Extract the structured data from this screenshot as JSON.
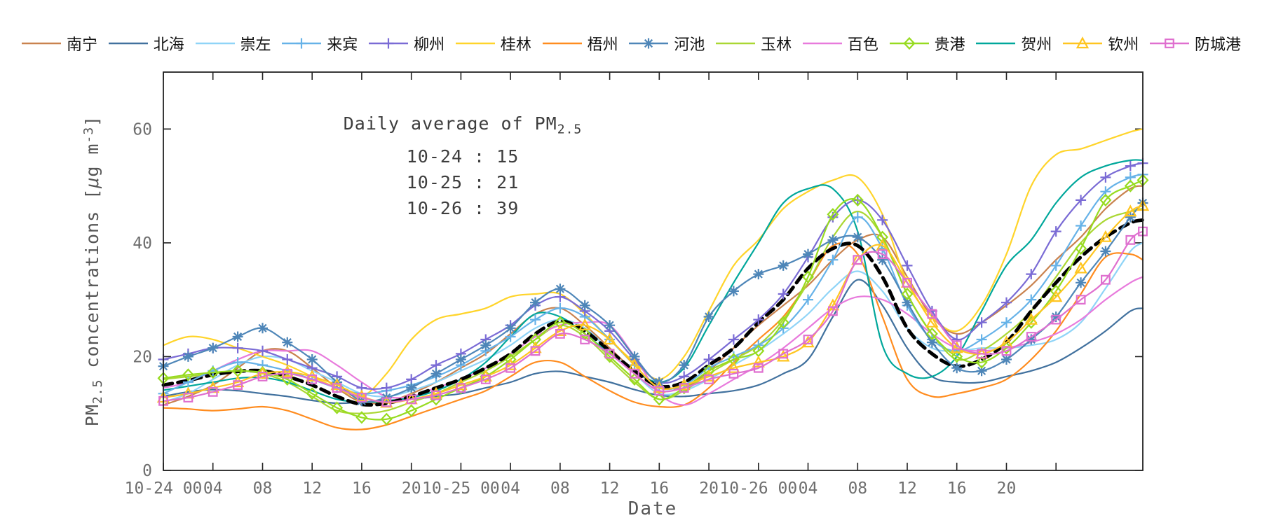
{
  "figure": {
    "background": "#ffffff",
    "frame_color": "#222222",
    "tick_label_color": "#6e6e6e"
  },
  "chart_data": {
    "type": "line",
    "title": "",
    "xlabel": "Date",
    "ylabel_text": "PM2.5 concentrations [ug m-3]",
    "ylabel_parts": {
      "p1": "PM",
      "sub": "2.5",
      "p2": " concentrations [",
      "mu": "μ",
      "p3": "g m",
      "sup": "-3",
      "p4": "]"
    },
    "annotation": {
      "title_main": "Daily average of PM",
      "title_sub": "2.5",
      "lines": [
        "10-24 : 15",
        "10-25 : 21",
        "10-26 : 39"
      ]
    },
    "x_unit": "hours from 10-24 00:00, step 2 h (last point 79 h)",
    "x_step_hours": 2,
    "x_last_hour": 79,
    "xlim": [
      0,
      79
    ],
    "ylim": [
      0,
      70
    ],
    "yticks": [
      0,
      20,
      40,
      60
    ],
    "xtick_hours": [
      0,
      4,
      8,
      12,
      16,
      20,
      24,
      28,
      32,
      36,
      40,
      44,
      48,
      52,
      56,
      60,
      64,
      68,
      72
    ],
    "xtick_labels": [
      "10-24 00",
      "04",
      "08",
      "12",
      "16",
      "20",
      "10-25 00",
      "04",
      "08",
      "12",
      "16",
      "20",
      "10-26 00",
      "04",
      "08",
      "12",
      "16",
      "20",
      ""
    ],
    "grid": false,
    "legend_position": "top",
    "series": [
      {
        "key": "nanning",
        "label": "南宁",
        "color": "#C9824E",
        "marker": "none",
        "width": 2.2,
        "in_legend": true,
        "values": [
          11.5,
          13,
          15,
          18,
          21,
          21,
          18,
          14.5,
          12,
          12,
          13.5,
          15.5,
          18,
          20.5,
          24,
          27.5,
          28.5,
          25.5,
          21.5,
          17.5,
          15,
          14.5,
          17.5,
          21.5,
          25.5,
          29,
          32.5,
          37,
          40.5,
          41,
          34,
          27,
          24,
          26,
          29,
          32.5,
          37,
          41,
          46,
          49.5,
          50
        ]
      },
      {
        "key": "beihai",
        "label": "北海",
        "color": "#41719E",
        "marker": "none",
        "width": 2.2,
        "in_legend": true,
        "values": [
          13,
          13.8,
          14.2,
          14,
          13.5,
          13,
          12.3,
          11.8,
          12,
          12.3,
          12.5,
          13,
          13.5,
          14.5,
          15.5,
          17,
          17.4,
          16.5,
          15.5,
          14.2,
          13.2,
          13,
          13.5,
          14,
          15,
          17,
          19.5,
          27,
          33.5,
          29,
          21.5,
          16.5,
          15.5,
          15.5,
          16.5,
          17.5,
          19,
          21.5,
          24.5,
          28,
          28.5
        ]
      },
      {
        "key": "chongzuo",
        "label": "崇左",
        "color": "#8FD4F7",
        "marker": "none",
        "width": 2.2,
        "in_legend": true,
        "values": [
          12,
          13.5,
          16,
          18.5,
          20,
          19.5,
          17.5,
          15.5,
          13.5,
          13,
          14,
          15.5,
          17.5,
          19.5,
          22,
          25,
          26.5,
          25,
          21,
          17,
          13.5,
          14,
          16,
          18.5,
          21,
          24,
          27.5,
          32,
          35,
          31.5,
          25,
          21.5,
          21,
          21.5,
          21.5,
          22,
          23,
          26,
          32,
          38.5,
          40
        ]
      },
      {
        "key": "laibin",
        "label": "来宾",
        "color": "#66B2E8",
        "marker": "plus",
        "width": 2.2,
        "in_legend": true,
        "values": [
          13.5,
          15.5,
          17.5,
          19,
          18.5,
          17.5,
          16,
          14.5,
          13.5,
          14,
          15,
          16.5,
          18.5,
          21,
          23.5,
          26.5,
          28.5,
          27,
          23,
          18.5,
          14.5,
          15,
          18,
          20,
          22,
          25,
          30,
          37,
          44.5,
          39,
          29,
          23,
          21,
          23,
          26,
          30,
          36,
          43,
          49,
          51.5,
          52
        ]
      },
      {
        "key": "liuzhou",
        "label": "柳州",
        "color": "#7A6BD5",
        "marker": "plus",
        "width": 2.2,
        "in_legend": true,
        "values": [
          19.5,
          20.5,
          21.5,
          21.5,
          21,
          19.5,
          18,
          16.5,
          14.5,
          14.5,
          16,
          18.5,
          20.5,
          23,
          25.5,
          29,
          30.5,
          28,
          24.5,
          19.5,
          15.5,
          16.5,
          19.5,
          23,
          26.5,
          31,
          37.5,
          44.5,
          47.5,
          44,
          36,
          28,
          23,
          26,
          29.5,
          34.5,
          42,
          47.5,
          51.5,
          53.5,
          54
        ]
      },
      {
        "key": "guilin",
        "label": "桂林",
        "color": "#FFD42A",
        "marker": "none",
        "width": 2.2,
        "in_legend": true,
        "values": [
          22,
          23.5,
          23,
          21.5,
          20,
          18.5,
          16.5,
          14.5,
          13,
          17,
          23,
          26.5,
          27.5,
          28.5,
          30.5,
          31,
          31,
          27.5,
          23,
          19,
          16,
          20,
          28,
          36,
          40.5,
          46,
          49,
          51,
          51.5,
          45,
          33,
          27,
          24.5,
          29,
          38,
          50,
          55.5,
          56.5,
          58,
          59.5,
          60
        ]
      },
      {
        "key": "wuzhou",
        "label": "梧州",
        "color": "#FF8C1F",
        "marker": "none",
        "width": 2.2,
        "in_legend": true,
        "values": [
          11,
          10.8,
          10.5,
          10.8,
          11.2,
          10.5,
          9,
          7.5,
          7.2,
          8,
          9.5,
          11,
          12.5,
          14,
          16.5,
          19,
          19,
          16.5,
          14,
          12,
          11.2,
          11.5,
          14.5,
          19,
          23,
          27,
          33,
          39.5,
          38,
          27,
          16,
          13,
          13.5,
          14.5,
          16,
          19.5,
          24.5,
          31,
          37.5,
          38,
          37
        ]
      },
      {
        "key": "hechi",
        "label": "河池",
        "color": "#4E86B8",
        "marker": "asterisk",
        "width": 2.2,
        "in_legend": true,
        "values": [
          18.3,
          20,
          21.5,
          23.5,
          25,
          22.5,
          19.5,
          15.5,
          12.2,
          12.8,
          14.5,
          17,
          19.5,
          22,
          25,
          29.5,
          31.9,
          29,
          25.5,
          20,
          15.5,
          18.5,
          27,
          31.5,
          34.5,
          36,
          38,
          40.5,
          41,
          37,
          29.5,
          22.5,
          18,
          17.5,
          19.5,
          23,
          27,
          33,
          38.5,
          44.5,
          47
        ]
      },
      {
        "key": "yulin",
        "label": "玉林",
        "color": "#AAD733",
        "marker": "none",
        "width": 2.2,
        "in_legend": true,
        "values": [
          16,
          16.5,
          17,
          17.5,
          17,
          15.5,
          13,
          10.5,
          10,
          10.5,
          12,
          13.5,
          15.5,
          17.5,
          20,
          23,
          25.5,
          23.5,
          19.5,
          15.5,
          12.5,
          14,
          17,
          19.5,
          22,
          26.5,
          33,
          41,
          45.5,
          41,
          31,
          24,
          19.5,
          21,
          24,
          28,
          34,
          40,
          44,
          45.5,
          46
        ]
      },
      {
        "key": "baise",
        "label": "百色",
        "color": "#E87ADC",
        "marker": "none",
        "width": 2.2,
        "in_legend": true,
        "values": [
          14.5,
          15.5,
          17.5,
          19.5,
          21,
          21,
          21,
          18.5,
          15.5,
          13,
          13,
          14.5,
          16,
          18,
          20.5,
          23.5,
          25.5,
          26,
          25.5,
          20,
          13.5,
          11.5,
          13.5,
          16,
          18.5,
          21.5,
          25,
          28.5,
          30.5,
          30,
          27.5,
          24,
          21.5,
          21,
          21.5,
          22.5,
          24,
          26.5,
          30,
          33,
          34
        ]
      },
      {
        "key": "guigang",
        "label": "贵港",
        "color": "#97DB20",
        "marker": "diamond",
        "width": 2.2,
        "in_legend": true,
        "values": [
          16.2,
          16.8,
          17.2,
          17.5,
          17.2,
          16,
          13.5,
          11,
          9.3,
          9,
          10.5,
          12.5,
          14.5,
          16.5,
          19.5,
          23,
          26,
          24,
          20,
          16,
          12.5,
          14.5,
          17.5,
          19.5,
          21,
          26,
          34,
          45,
          47.5,
          41,
          31,
          24,
          20,
          19,
          21.5,
          26,
          31.5,
          39,
          47.5,
          50,
          51
        ]
      },
      {
        "key": "hezhou",
        "label": "贺州",
        "color": "#00A79B",
        "marker": "none",
        "width": 2.2,
        "in_legend": true,
        "values": [
          14.1,
          14.8,
          15.5,
          16.2,
          16.3,
          15.5,
          14,
          12.5,
          12,
          12.2,
          12.8,
          14,
          16,
          19,
          23.5,
          27.5,
          27,
          24,
          20.5,
          17.5,
          15.5,
          18,
          25.5,
          33,
          40,
          47,
          49.5,
          49.5,
          42,
          22,
          17,
          16.5,
          20,
          28,
          36,
          40.5,
          47,
          51.5,
          53.5,
          54.5,
          54.5
        ]
      },
      {
        "key": "qinzhou",
        "label": "钦州",
        "color": "#FFC520",
        "marker": "triangle",
        "width": 2.2,
        "in_legend": true,
        "values": [
          12.8,
          13.5,
          14.5,
          15.5,
          17,
          17.3,
          16.5,
          15,
          13,
          11.9,
          12.5,
          13.5,
          15,
          16.5,
          18.5,
          21.5,
          24.5,
          25.5,
          23,
          18.5,
          14.5,
          15,
          16.5,
          18,
          19,
          20,
          22.5,
          29,
          37,
          39.5,
          33,
          26,
          21.5,
          20.5,
          22.5,
          26.5,
          30.5,
          35.5,
          41,
          45.5,
          46.5
        ]
      },
      {
        "key": "fangchenggang",
        "label": "防城港",
        "color": "#DF6FCF",
        "marker": "square",
        "width": 2.2,
        "in_legend": true,
        "values": [
          12.2,
          12.8,
          13.8,
          15,
          16.5,
          17,
          16,
          14.5,
          12.8,
          12,
          12.5,
          13.2,
          14.5,
          16,
          18,
          21,
          24,
          23,
          20.5,
          17,
          14,
          14.5,
          16,
          17,
          18,
          20.5,
          23,
          28,
          37,
          38,
          33,
          27.5,
          22,
          20.5,
          21,
          23.5,
          26.5,
          30,
          33.5,
          40.5,
          42
        ]
      },
      {
        "key": "average",
        "label": "average",
        "color": "#000000",
        "marker": "none",
        "width": 5,
        "dash": "13 8",
        "in_legend": false,
        "values": [
          15,
          15.8,
          16.8,
          17.4,
          17.5,
          16.5,
          15,
          13,
          11.6,
          11.8,
          13,
          14.5,
          16,
          18,
          20.5,
          24,
          26.2,
          24.5,
          21,
          17.5,
          14.8,
          15.5,
          18.5,
          21.5,
          26,
          30,
          35.5,
          39,
          39.5,
          34,
          25,
          20.5,
          18.3,
          19.5,
          22.5,
          28,
          33,
          37.5,
          41,
          43.5,
          44
        ]
      }
    ]
  }
}
